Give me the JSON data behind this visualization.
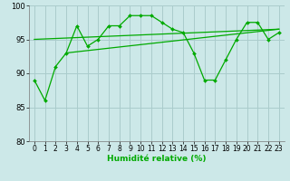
{
  "xlabel": "Humidité relative (%)",
  "xlim": [
    -0.5,
    23.5
  ],
  "ylim": [
    80,
    100
  ],
  "yticks": [
    80,
    85,
    90,
    95,
    100
  ],
  "xticks": [
    0,
    1,
    2,
    3,
    4,
    5,
    6,
    7,
    8,
    9,
    10,
    11,
    12,
    13,
    14,
    15,
    16,
    17,
    18,
    19,
    20,
    21,
    22,
    23
  ],
  "background_color": "#cce8e8",
  "grid_color": "#aacccc",
  "line_color": "#00aa00",
  "main_data_x": [
    0,
    1,
    2,
    3,
    4,
    5,
    6,
    7,
    8,
    9,
    10,
    11,
    12,
    13,
    14,
    15,
    16,
    17,
    18,
    19,
    20,
    21,
    22,
    23
  ],
  "main_data_y": [
    89,
    86,
    91,
    93,
    97,
    94,
    95,
    97,
    97,
    98.5,
    98.5,
    98.5,
    97.5,
    96.5,
    96,
    93,
    89,
    89,
    92,
    95,
    97.5,
    97.5,
    95,
    96
  ],
  "trend1_x": [
    0,
    23
  ],
  "trend1_y": [
    95.0,
    96.5
  ],
  "trend2_x": [
    3,
    23
  ],
  "trend2_y": [
    93.0,
    96.5
  ]
}
